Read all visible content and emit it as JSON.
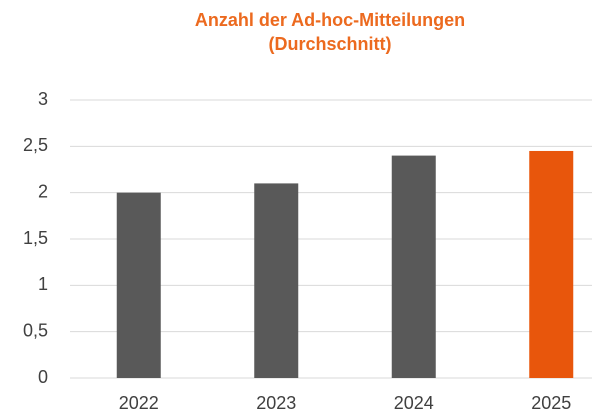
{
  "chart_data": {
    "type": "bar",
    "title": "Anzahl der Ad-hoc-Mitteilungen",
    "subtitle": "(Durchschnitt)",
    "categories": [
      "2022",
      "2023",
      "2024",
      "2025"
    ],
    "values": [
      2.0,
      2.1,
      2.4,
      2.45
    ],
    "colors": [
      "#595959",
      "#595959",
      "#595959",
      "#e8560c"
    ],
    "ylim": [
      0,
      3
    ],
    "yticks": [
      0,
      {
        "value": 0.5,
        "label": "0,5"
      },
      1,
      {
        "value": 1.5,
        "label": "1,5"
      },
      2,
      {
        "value": 2.5,
        "label": "2,5"
      },
      3
    ],
    "grid": true
  }
}
